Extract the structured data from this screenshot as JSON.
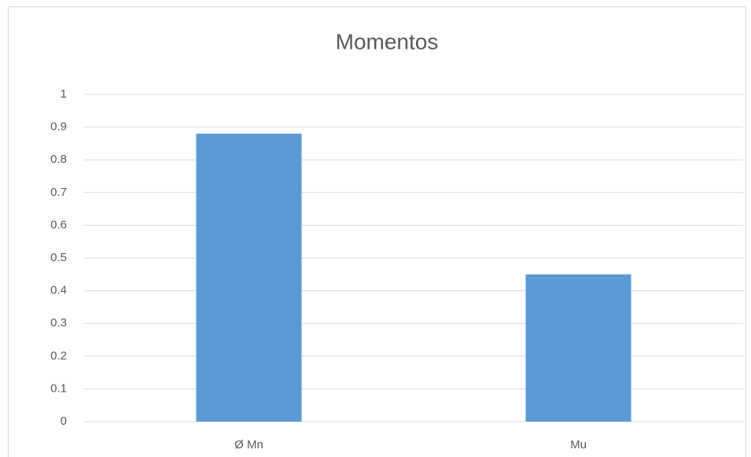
{
  "chart_data": {
    "type": "bar",
    "title": "Momentos",
    "categories": [
      "Ø Mn",
      "Mu"
    ],
    "values": [
      0.88,
      0.45
    ],
    "color": "#5b9bd5",
    "ylim": [
      0,
      1
    ],
    "yticks": [
      0,
      0.1,
      0.2,
      0.3,
      0.4,
      0.5,
      0.6,
      0.7,
      0.8,
      0.9,
      1
    ],
    "grid": true
  }
}
